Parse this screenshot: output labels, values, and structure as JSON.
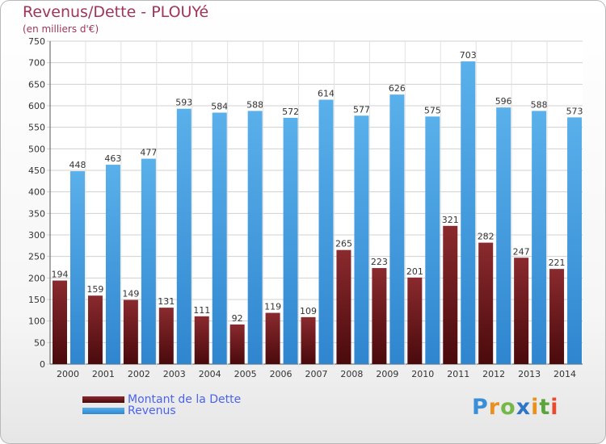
{
  "chart_data": {
    "type": "bar",
    "title": "Revenus/Dette - PLOUYé",
    "subtitle": "(en milliers d'€)",
    "xlabel": "",
    "ylabel": "",
    "ylim": [
      0,
      750
    ],
    "ytick_step": 50,
    "grid": true,
    "categories": [
      "2000",
      "2001",
      "2002",
      "2003",
      "2004",
      "2005",
      "2006",
      "2007",
      "2008",
      "2009",
      "2010",
      "2011",
      "2012",
      "2013",
      "2014"
    ],
    "series": [
      {
        "name": "Montant de la Dette",
        "color": "#7a1e22",
        "values": [
          194,
          159,
          149,
          131,
          111,
          92,
          119,
          109,
          265,
          223,
          201,
          321,
          282,
          247,
          221
        ]
      },
      {
        "name": "Revenus",
        "color": "#4aa3e3",
        "values": [
          448,
          463,
          477,
          593,
          584,
          588,
          572,
          614,
          577,
          626,
          575,
          703,
          596,
          588,
          573
        ]
      }
    ],
    "legend_position": "bottom-left"
  },
  "branding": {
    "logo_letters": [
      "P",
      "r",
      "o",
      "x",
      "i",
      "t",
      "i"
    ]
  }
}
